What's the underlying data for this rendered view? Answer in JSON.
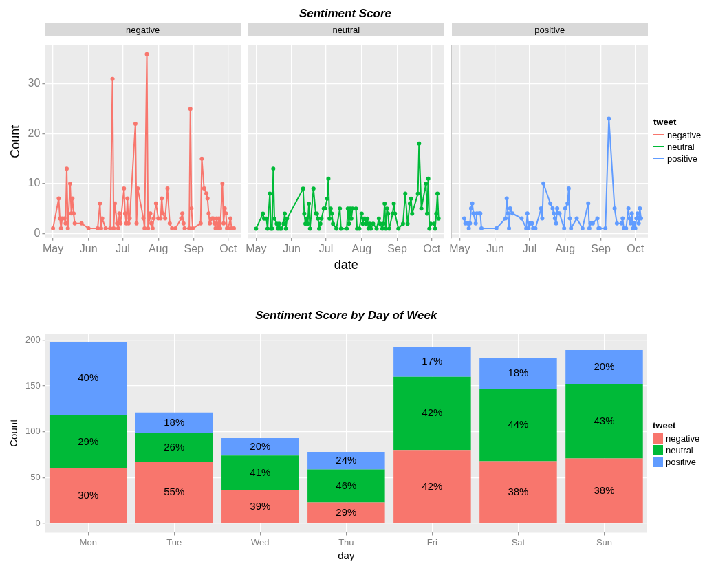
{
  "chart_data": [
    {
      "type": "line",
      "subtitle": "negative",
      "ylabel": "Count",
      "xlim": [
        "--04-24",
        "--10-12"
      ],
      "xticks": [
        {
          "value": "--05-01",
          "label": "May"
        },
        {
          "value": "--06-01",
          "label": "Jun"
        },
        {
          "value": "--07-01",
          "label": "Jul"
        },
        {
          "value": "--08-01",
          "label": "Aug"
        },
        {
          "value": "--09-01",
          "label": "Sep"
        },
        {
          "value": "--10-01",
          "label": "Oct"
        }
      ],
      "ylim": [
        -0.9,
        37.8
      ],
      "yticks": [
        0,
        10,
        20,
        30
      ],
      "grid": true,
      "marker": "circle",
      "line_style": "solid",
      "series": [
        {
          "name": "negative",
          "color": "#f8766d",
          "x": [
            "--05-01",
            "--05-06",
            "--05-07",
            "--05-08",
            "--05-09",
            "--05-11",
            "--05-12",
            "--05-13",
            "--05-14",
            "--05-16",
            "--05-17",
            "--05-18",
            "--05-19",
            "--05-20",
            "--05-26",
            "--06-01",
            "--06-09",
            "--06-11",
            "--06-12",
            "--06-13",
            "--06-16",
            "--06-20",
            "--06-22",
            "--06-23",
            "--06-24",
            "--06-26",
            "--06-27",
            "--06-28",
            "--06-29",
            "--07-02",
            "--07-03",
            "--07-04",
            "--07-05",
            "--07-06",
            "--07-07",
            "--07-12",
            "--07-13",
            "--07-14",
            "--07-19",
            "--07-20",
            "--07-22",
            "--07-23",
            "--07-25",
            "--07-26",
            "--07-27",
            "--07-28",
            "--07-30",
            "--08-01",
            "--08-03",
            "--08-04",
            "--08-05",
            "--08-07",
            "--08-09",
            "--08-11",
            "--08-13",
            "--08-16",
            "--08-21",
            "--08-22",
            "--08-23",
            "--08-24",
            "--08-28",
            "--08-29",
            "--08-30",
            "--08-31",
            "--09-07",
            "--09-08",
            "--09-10",
            "--09-12",
            "--09-13",
            "--09-14",
            "--09-15",
            "--09-17",
            "--09-18",
            "--09-19",
            "--09-20",
            "--09-21",
            "--09-22",
            "--09-23",
            "--09-24",
            "--09-26",
            "--09-27",
            "--09-28",
            "--09-29",
            "--09-30",
            "--10-01",
            "--10-03",
            "--10-04",
            "--10-06"
          ],
          "values": [
            1,
            7,
            3,
            1,
            3,
            3,
            2,
            13,
            1,
            10,
            4,
            7,
            4,
            2,
            2,
            1,
            1,
            6,
            1,
            3,
            1,
            1,
            31,
            1,
            6,
            2,
            1,
            4,
            2,
            9,
            4,
            2,
            7,
            2,
            3,
            22,
            2,
            9,
            3,
            1,
            36,
            1,
            4,
            2,
            1,
            3,
            6,
            3,
            3,
            7,
            4,
            3,
            9,
            2,
            1,
            1,
            3,
            4,
            2,
            1,
            1,
            25,
            5,
            1,
            2,
            15,
            9,
            8,
            7,
            4,
            2,
            3,
            3,
            2,
            1,
            3,
            1,
            3,
            1,
            10,
            2,
            5,
            4,
            1,
            1,
            3,
            1,
            1
          ]
        }
      ]
    },
    {
      "type": "line",
      "title": "Sentiment Score",
      "subtitle": "neutral",
      "xlabel": "date",
      "xlim": [
        "--04-24",
        "--10-12"
      ],
      "xticks": [
        {
          "value": "--05-01",
          "label": "May"
        },
        {
          "value": "--06-01",
          "label": "Jun"
        },
        {
          "value": "--07-01",
          "label": "Jul"
        },
        {
          "value": "--08-01",
          "label": "Aug"
        },
        {
          "value": "--09-01",
          "label": "Sep"
        },
        {
          "value": "--10-01",
          "label": "Oct"
        }
      ],
      "ylim": [
        -0.9,
        37.8
      ],
      "yticks": [
        0,
        10,
        20,
        30
      ],
      "grid": true,
      "marker": "circle",
      "line_style": "solid",
      "tick_labels": "x",
      "series": [
        {
          "name": "neutral",
          "color": "#00ba38",
          "x": [
            "--05-01",
            "--05-07",
            "--05-08",
            "--05-10",
            "--05-11",
            "--05-13",
            "--05-14",
            "--05-15",
            "--05-16",
            "--05-17",
            "--05-19",
            "--05-20",
            "--05-21",
            "--05-22",
            "--05-23",
            "--05-25",
            "--05-26",
            "--05-27",
            "--05-28",
            "--06-11",
            "--06-12",
            "--06-13",
            "--06-14",
            "--06-15",
            "--06-16",
            "--06-17",
            "--06-20",
            "--06-22",
            "--06-23",
            "--06-24",
            "--06-25",
            "--06-26",
            "--06-27",
            "--06-29",
            "--06-30",
            "--07-02",
            "--07-03",
            "--07-04",
            "--07-05",
            "--07-06",
            "--07-07",
            "--07-10",
            "--07-13",
            "--07-14",
            "--07-19",
            "--07-20",
            "--07-21",
            "--07-22",
            "--07-23",
            "--07-24",
            "--07-27",
            "--07-28",
            "--07-30",
            "--08-01",
            "--08-02",
            "--08-03",
            "--08-04",
            "--08-05",
            "--08-06",
            "--08-07",
            "--08-08",
            "--08-09",
            "--08-11",
            "--08-14",
            "--08-16",
            "--08-17",
            "--08-19",
            "--08-20",
            "--08-21",
            "--08-22",
            "--08-23",
            "--08-24",
            "--08-25",
            "--08-28",
            "--08-29",
            "--08-30",
            "--09-02",
            "--09-06",
            "--09-08",
            "--09-10",
            "--09-12",
            "--09-13",
            "--09-14",
            "--09-19",
            "--09-20",
            "--09-22",
            "--09-26",
            "--09-27",
            "--09-28",
            "--09-29",
            "--09-30",
            "--10-03",
            "--10-04",
            "--10-05",
            "--10-06",
            "--10-07"
          ],
          "values": [
            1,
            4,
            3,
            3,
            1,
            8,
            1,
            1,
            13,
            3,
            2,
            1,
            2,
            1,
            1,
            2,
            4,
            1,
            3,
            9,
            4,
            2,
            3,
            2,
            6,
            1,
            9,
            4,
            4,
            3,
            1,
            2,
            3,
            5,
            5,
            7,
            11,
            3,
            5,
            4,
            2,
            1,
            5,
            1,
            1,
            5,
            2,
            5,
            3,
            5,
            5,
            1,
            1,
            4,
            2,
            3,
            3,
            2,
            3,
            1,
            2,
            1,
            2,
            1,
            3,
            2,
            1,
            2,
            6,
            1,
            5,
            4,
            1,
            4,
            6,
            4,
            1,
            2,
            8,
            2,
            6,
            7,
            4,
            8,
            18,
            5,
            10,
            4,
            11,
            1,
            2,
            2,
            1,
            4,
            8,
            3
          ]
        }
      ]
    },
    {
      "type": "line",
      "subtitle": "positive",
      "legend": "right",
      "legend_title": "tweet",
      "xlim": [
        "--04-24",
        "--10-12"
      ],
      "xticks": [
        {
          "value": "--05-01",
          "label": "May"
        },
        {
          "value": "--06-01",
          "label": "Jun"
        },
        {
          "value": "--07-01",
          "label": "Jul"
        },
        {
          "value": "--08-01",
          "label": "Aug"
        },
        {
          "value": "--09-01",
          "label": "Sep"
        },
        {
          "value": "--10-01",
          "label": "Oct"
        }
      ],
      "ylim": [
        -0.9,
        37.8
      ],
      "yticks": [
        0,
        10,
        20,
        30
      ],
      "grid": true,
      "marker": "circle",
      "line_style": "solid",
      "tick_labels": "x",
      "series": [
        {
          "name": "positive",
          "color": "#619cff",
          "x": [
            "--05-05",
            "--05-06",
            "--05-08",
            "--05-09",
            "--05-10",
            "--05-11",
            "--05-12",
            "--05-13",
            "--05-15",
            "--05-16",
            "--05-18",
            "--05-19",
            "--05-20",
            "--06-02",
            "--06-10",
            "--06-11",
            "--06-12",
            "--06-13",
            "--06-14",
            "--06-16",
            "--06-24",
            "--06-28",
            "--06-29",
            "--06-30",
            "--07-01",
            "--07-02",
            "--07-03",
            "--07-04",
            "--07-06",
            "--07-11",
            "--07-12",
            "--07-13",
            "--07-19",
            "--07-21",
            "--07-22",
            "--07-23",
            "--07-24",
            "--07-25",
            "--07-26",
            "--07-27",
            "--07-31",
            "--08-01",
            "--08-03",
            "--08-04",
            "--08-05",
            "--08-06",
            "--08-11",
            "--08-16",
            "--08-21",
            "--08-22",
            "--08-23",
            "--08-25",
            "--08-29",
            "--08-30",
            "--08-31",
            "--09-05",
            "--09-08",
            "--09-13",
            "--09-15",
            "--09-19",
            "--09-20",
            "--09-21",
            "--09-23",
            "--09-25",
            "--09-26",
            "--09-27",
            "--09-28",
            "--09-29",
            "--09-30",
            "--10-01",
            "--10-02",
            "--10-03",
            "--10-04",
            "--10-05",
            "--10-06"
          ],
          "values": [
            3,
            2,
            2,
            1,
            2,
            5,
            6,
            4,
            2,
            4,
            4,
            4,
            1,
            1,
            3,
            7,
            4,
            1,
            5,
            4,
            3,
            1,
            4,
            1,
            2,
            2,
            2,
            1,
            1,
            5,
            3,
            10,
            6,
            5,
            4,
            3,
            2,
            5,
            4,
            4,
            1,
            5,
            6,
            9,
            3,
            1,
            3,
            1,
            6,
            1,
            2,
            2,
            3,
            1,
            1,
            1,
            23,
            5,
            2,
            2,
            3,
            1,
            1,
            5,
            3,
            2,
            4,
            1,
            2,
            1,
            3,
            4,
            2,
            5,
            3
          ]
        }
      ]
    },
    {
      "type": "bar",
      "title": "Sentiment Score by Day of Week",
      "xlabel": "day",
      "ylabel": "Count",
      "legend": "right",
      "legend_title": "tweet",
      "stacked": true,
      "annotations": [
        "30%",
        "55%",
        "39%",
        "29%",
        "42%",
        "38%",
        "38%",
        "29%",
        "26%",
        "41%",
        "46%",
        "42%",
        "44%",
        "43%",
        "40%",
        "18%",
        "20%",
        "24%",
        "17%",
        "18%",
        "20%"
      ],
      "grid": true,
      "categories": [
        "Mon",
        "Tue",
        "Wed",
        "Thu",
        "Fri",
        "Sat",
        "Sun"
      ],
      "ylim": [
        -10,
        207
      ],
      "yticks": [
        0,
        50,
        100,
        150,
        200
      ],
      "series": [
        {
          "name": "negative",
          "color": "#f8766d",
          "values": [
            60,
            67,
            36,
            23,
            80,
            68,
            71
          ]
        },
        {
          "name": "neutral",
          "color": "#00ba38",
          "values": [
            58,
            32,
            38,
            36,
            80,
            79,
            81
          ]
        },
        {
          "name": "positive",
          "color": "#619cff",
          "values": [
            80,
            22,
            19,
            19,
            32,
            33,
            37
          ]
        }
      ]
    }
  ]
}
